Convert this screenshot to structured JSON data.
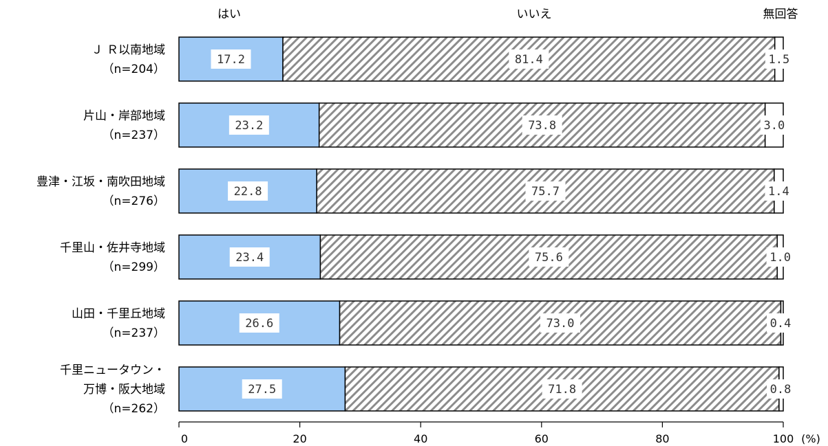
{
  "chart_data": {
    "type": "bar",
    "orientation": "horizontal",
    "stacked": true,
    "series_names": [
      "はい",
      "いいえ",
      "無回答"
    ],
    "categories": [
      {
        "lines": [
          "Ｊ Ｒ以南地域",
          "（n=204）"
        ],
        "values": [
          17.2,
          81.4,
          1.5
        ],
        "labels": [
          "17.2",
          "81.4",
          "1.5"
        ]
      },
      {
        "lines": [
          "片山・岸部地域",
          "（n=237）"
        ],
        "values": [
          23.2,
          73.8,
          3.0
        ],
        "labels": [
          "23.2",
          "73.8",
          "3.0"
        ]
      },
      {
        "lines": [
          "豊津・江坂・南吹田地域",
          "（n=276）"
        ],
        "values": [
          22.8,
          75.7,
          1.4
        ],
        "labels": [
          "22.8",
          "75.7",
          "1.4"
        ]
      },
      {
        "lines": [
          "千里山・佐井寺地域",
          "（n=299）"
        ],
        "values": [
          23.4,
          75.6,
          1.0
        ],
        "labels": [
          "23.4",
          "75.6",
          "1.0"
        ]
      },
      {
        "lines": [
          "山田・千里丘地域",
          "（n=237）"
        ],
        "values": [
          26.6,
          73.0,
          0.4
        ],
        "labels": [
          "26.6",
          "73.0",
          "0.4"
        ]
      },
      {
        "lines": [
          "千里ニュータウン・",
          "万博・阪大地域",
          "（n=262）"
        ],
        "values": [
          27.5,
          71.8,
          0.8
        ],
        "labels": [
          "27.5",
          "71.8",
          "0.8"
        ]
      }
    ],
    "x_ticks": [
      "0",
      "20",
      "40",
      "60",
      "80",
      "100"
    ],
    "x_unit": "(%)",
    "xlim": [
      0,
      100
    ],
    "colors": {
      "yes": "#9ec9f5",
      "no_stripe": "#8c8c8c",
      "no_answer": "#ffffff",
      "outline": "#000000"
    }
  }
}
